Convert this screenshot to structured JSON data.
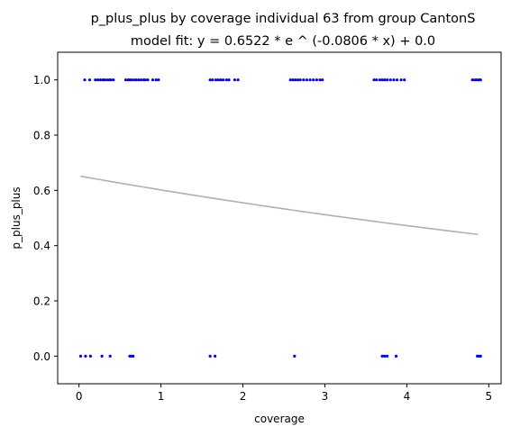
{
  "chart_data": {
    "type": "scatter",
    "title": "p_plus_plus by coverage individual 63 from group CantonS",
    "subtitle": "model fit: y = 0.6522 * e ^ (-0.0806 * x) + 0.0",
    "xlabel": "coverage",
    "ylabel": "p_plus_plus",
    "xlim": [
      -0.26,
      5.15
    ],
    "ylim": [
      -0.1,
      1.1
    ],
    "x_ticks": [
      0,
      1,
      2,
      3,
      4,
      5
    ],
    "x_tick_labels": [
      "0",
      "1",
      "2",
      "3",
      "4",
      "5"
    ],
    "y_ticks": [
      0.0,
      0.2,
      0.4,
      0.6,
      0.8,
      1.0
    ],
    "y_tick_labels": [
      "0.0",
      "0.2",
      "0.4",
      "0.6",
      "0.8",
      "1.0"
    ],
    "grid": false,
    "series": [
      {
        "kind": "points",
        "color": "#0000ff",
        "x": [
          0.07,
          0.13,
          0.2,
          0.23,
          0.26,
          0.29,
          0.31,
          0.34,
          0.37,
          0.39,
          0.42,
          0.57,
          0.6,
          0.62,
          0.64,
          0.67,
          0.7,
          0.73,
          0.76,
          0.79,
          0.81,
          0.84,
          0.9,
          0.94,
          0.97,
          1.6,
          1.63,
          1.67,
          1.7,
          1.73,
          1.76,
          1.8,
          1.83,
          1.9,
          1.94,
          2.58,
          2.61,
          2.64,
          2.67,
          2.7,
          2.74,
          2.78,
          2.82,
          2.86,
          2.9,
          2.94,
          2.97,
          3.6,
          3.63,
          3.67,
          3.7,
          3.73,
          3.76,
          3.8,
          3.84,
          3.88,
          3.93,
          3.97,
          4.8,
          4.83,
          4.85,
          4.87,
          4.89,
          4.9,
          0.02,
          0.08,
          0.14,
          0.28,
          0.38,
          0.62,
          0.64,
          0.66,
          1.6,
          1.66,
          2.63,
          3.7,
          3.73,
          3.76,
          3.87,
          4.86,
          4.88,
          4.9
        ],
        "y": [
          1,
          1,
          1,
          1,
          1,
          1,
          1,
          1,
          1,
          1,
          1,
          1,
          1,
          1,
          1,
          1,
          1,
          1,
          1,
          1,
          1,
          1,
          1,
          1,
          1,
          1,
          1,
          1,
          1,
          1,
          1,
          1,
          1,
          1,
          1,
          1,
          1,
          1,
          1,
          1,
          1,
          1,
          1,
          1,
          1,
          1,
          1,
          1,
          1,
          1,
          1,
          1,
          1,
          1,
          1,
          1,
          1,
          1,
          1,
          1,
          1,
          1,
          1,
          1,
          0,
          0,
          0,
          0,
          0,
          0,
          0,
          0,
          0,
          0,
          0,
          0,
          0,
          0,
          0,
          0,
          0,
          0
        ]
      },
      {
        "kind": "fit_line",
        "color": "#b0b0b0",
        "model": {
          "a": 0.6522,
          "b": -0.0806,
          "c": 0.0
        },
        "x_range": [
          0.02,
          4.87
        ]
      }
    ]
  }
}
